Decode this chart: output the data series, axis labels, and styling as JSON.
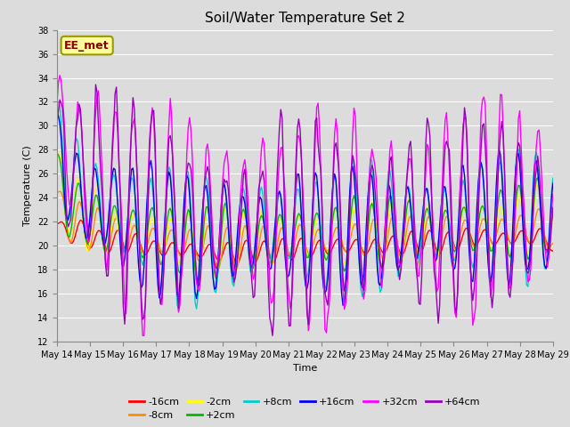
{
  "title": "Soil/Water Temperature Set 2",
  "xlabel": "Time",
  "ylabel": "Temperature (C)",
  "ylim": [
    12,
    38
  ],
  "yticks": [
    12,
    14,
    16,
    18,
    20,
    22,
    24,
    26,
    28,
    30,
    32,
    34,
    36,
    38
  ],
  "annotation_text": "EE_met",
  "annotation_color": "#8B0000",
  "annotation_bg": "#FFFF99",
  "annotation_border": "#999900",
  "series_colors": {
    "-16cm": "#FF0000",
    "-8cm": "#FF8C00",
    "-2cm": "#FFFF00",
    "+2cm": "#00BB00",
    "+8cm": "#00CCCC",
    "+16cm": "#0000EE",
    "+32cm": "#FF00FF",
    "+64cm": "#9900BB"
  },
  "series_order": [
    "-16cm",
    "-8cm",
    "-2cm",
    "+2cm",
    "+8cm",
    "+16cm",
    "+32cm",
    "+64cm"
  ],
  "background_color": "#DCDCDC",
  "plot_bg": "#DCDCDC",
  "grid_color": "#FFFFFF",
  "title_fontsize": 11,
  "axis_fontsize": 8,
  "tick_fontsize": 7,
  "legend_fontsize": 8
}
